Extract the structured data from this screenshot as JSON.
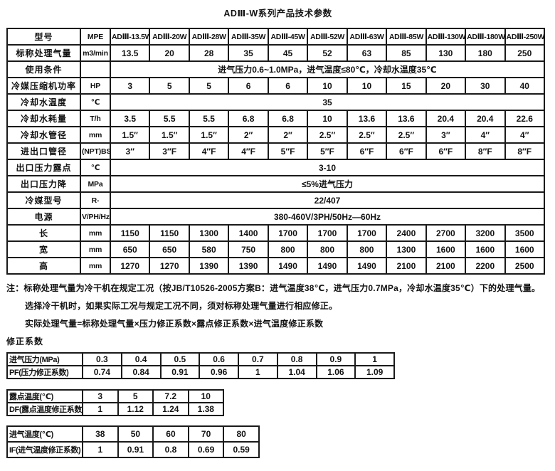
{
  "title": "ADⅢ-W系列产品技术参数",
  "main_table": {
    "rows": [
      {
        "label": "型号",
        "unit": "MPE",
        "cells": [
          "ADⅢ-13.5W",
          "ADⅢ-20W",
          "ADⅢ-28W",
          "ADⅢ-35W",
          "ADⅢ-45W",
          "ADⅢ-52W",
          "ADⅢ-63W",
          "ADⅢ-85W",
          "ADⅢ-130W",
          "ADⅢ-180W",
          "ADⅢ-250W"
        ]
      },
      {
        "label": "标称处理气量",
        "unit": "m3/min",
        "cells": [
          "13.5",
          "20",
          "28",
          "35",
          "45",
          "52",
          "63",
          "85",
          "130",
          "180",
          "250"
        ]
      },
      {
        "label": "使用条件",
        "unit": "",
        "span": "进气压力0.6~1.0MPa，进气温度≤80℃，冷却水温度35℃"
      },
      {
        "label": "冷媒压缩机功率",
        "unit": "HP",
        "cells": [
          "3",
          "5",
          "5",
          "6",
          "6",
          "10",
          "10",
          "15",
          "20",
          "30",
          "40"
        ]
      },
      {
        "label": "冷却水温度",
        "unit": "℃",
        "span": "35"
      },
      {
        "label": "冷却水耗量",
        "unit": "T/h",
        "cells": [
          "3.5",
          "5.5",
          "5.5",
          "6.8",
          "6.8",
          "10",
          "13.6",
          "13.6",
          "20.4",
          "20.4",
          "22.6"
        ]
      },
      {
        "label": "冷却水管径",
        "unit": "mm",
        "cells": [
          "1.5″",
          "1.5″",
          "1.5″",
          "2″",
          "2″",
          "2.5″",
          "2.5″",
          "2.5″",
          "3″",
          "4″",
          "4″"
        ]
      },
      {
        "label": "进出口管径",
        "unit": "(NPT)BSP",
        "cells": [
          "3″",
          "3″F",
          "4″F",
          "4″F",
          "5″F",
          "5″F",
          "6″F",
          "6″F",
          "6″F",
          "8″F",
          "8″F"
        ]
      },
      {
        "label": "出口压力露点",
        "unit": "℃",
        "span": "3-10"
      },
      {
        "label": "出口压力降",
        "unit": "MPa",
        "span": "≤5%进气压力"
      },
      {
        "label": "冷媒型号",
        "unit": "R-",
        "span": "22/407"
      },
      {
        "label": "电源",
        "unit": "V/PH/Hz",
        "span": "380-460V/3PH/50Hz—60Hz"
      },
      {
        "label": "长",
        "unit": "mm",
        "cells": [
          "1150",
          "1150",
          "1300",
          "1400",
          "1700",
          "1700",
          "1700",
          "2400",
          "2700",
          "3200",
          "3500"
        ]
      },
      {
        "label": "宽",
        "unit": "mm",
        "cells": [
          "650",
          "650",
          "580",
          "750",
          "800",
          "800",
          "800",
          "1300",
          "1600",
          "1600",
          "1600"
        ]
      },
      {
        "label": "高",
        "unit": "mm",
        "cells": [
          "1270",
          "1270",
          "1390",
          "1390",
          "1490",
          "1490",
          "1490",
          "2100",
          "2100",
          "2200",
          "2500"
        ]
      }
    ]
  },
  "notes": [
    "注：标称处理气量为冷干机在规定工况（按JB/T10526-2005方案B：进气温度38℃，进气压力0.7MPa，冷却水温度35℃）下的处理气量。",
    "选择冷干机时，如果实际工况与规定工况不同，须对标称处理气量进行相应修正。",
    "实际处理气量=标称处理气量×压力修正系数×露点修正系数×进气温度修正系数"
  ],
  "correction_heading": "修正系数",
  "correction_tables": [
    {
      "rows": [
        {
          "label": "进气压力(MPa)",
          "cells": [
            "0.3",
            "0.4",
            "0.5",
            "0.6",
            "0.7",
            "0.8",
            "0.9",
            "1"
          ]
        },
        {
          "label": "PF(压力修正系数)",
          "cells": [
            "0.74",
            "0.84",
            "0.91",
            "0.96",
            "1",
            "1.04",
            "1.06",
            "1.09"
          ]
        }
      ]
    },
    {
      "rows": [
        {
          "label": "露点温度(℃)",
          "cells": [
            "3",
            "5",
            "7.2",
            "10"
          ]
        },
        {
          "label": "DF(露点温度修正系数)",
          "cells": [
            "1",
            "1.12",
            "1.24",
            "1.38"
          ]
        }
      ]
    },
    {
      "rows": [
        {
          "label": "进气温度(℃)",
          "cells": [
            "38",
            "50",
            "60",
            "70",
            "80"
          ]
        },
        {
          "label": "IF(进气温度修正系数)",
          "cells": [
            "1",
            "0.91",
            "0.8",
            "0.69",
            "0.59"
          ]
        }
      ]
    }
  ]
}
